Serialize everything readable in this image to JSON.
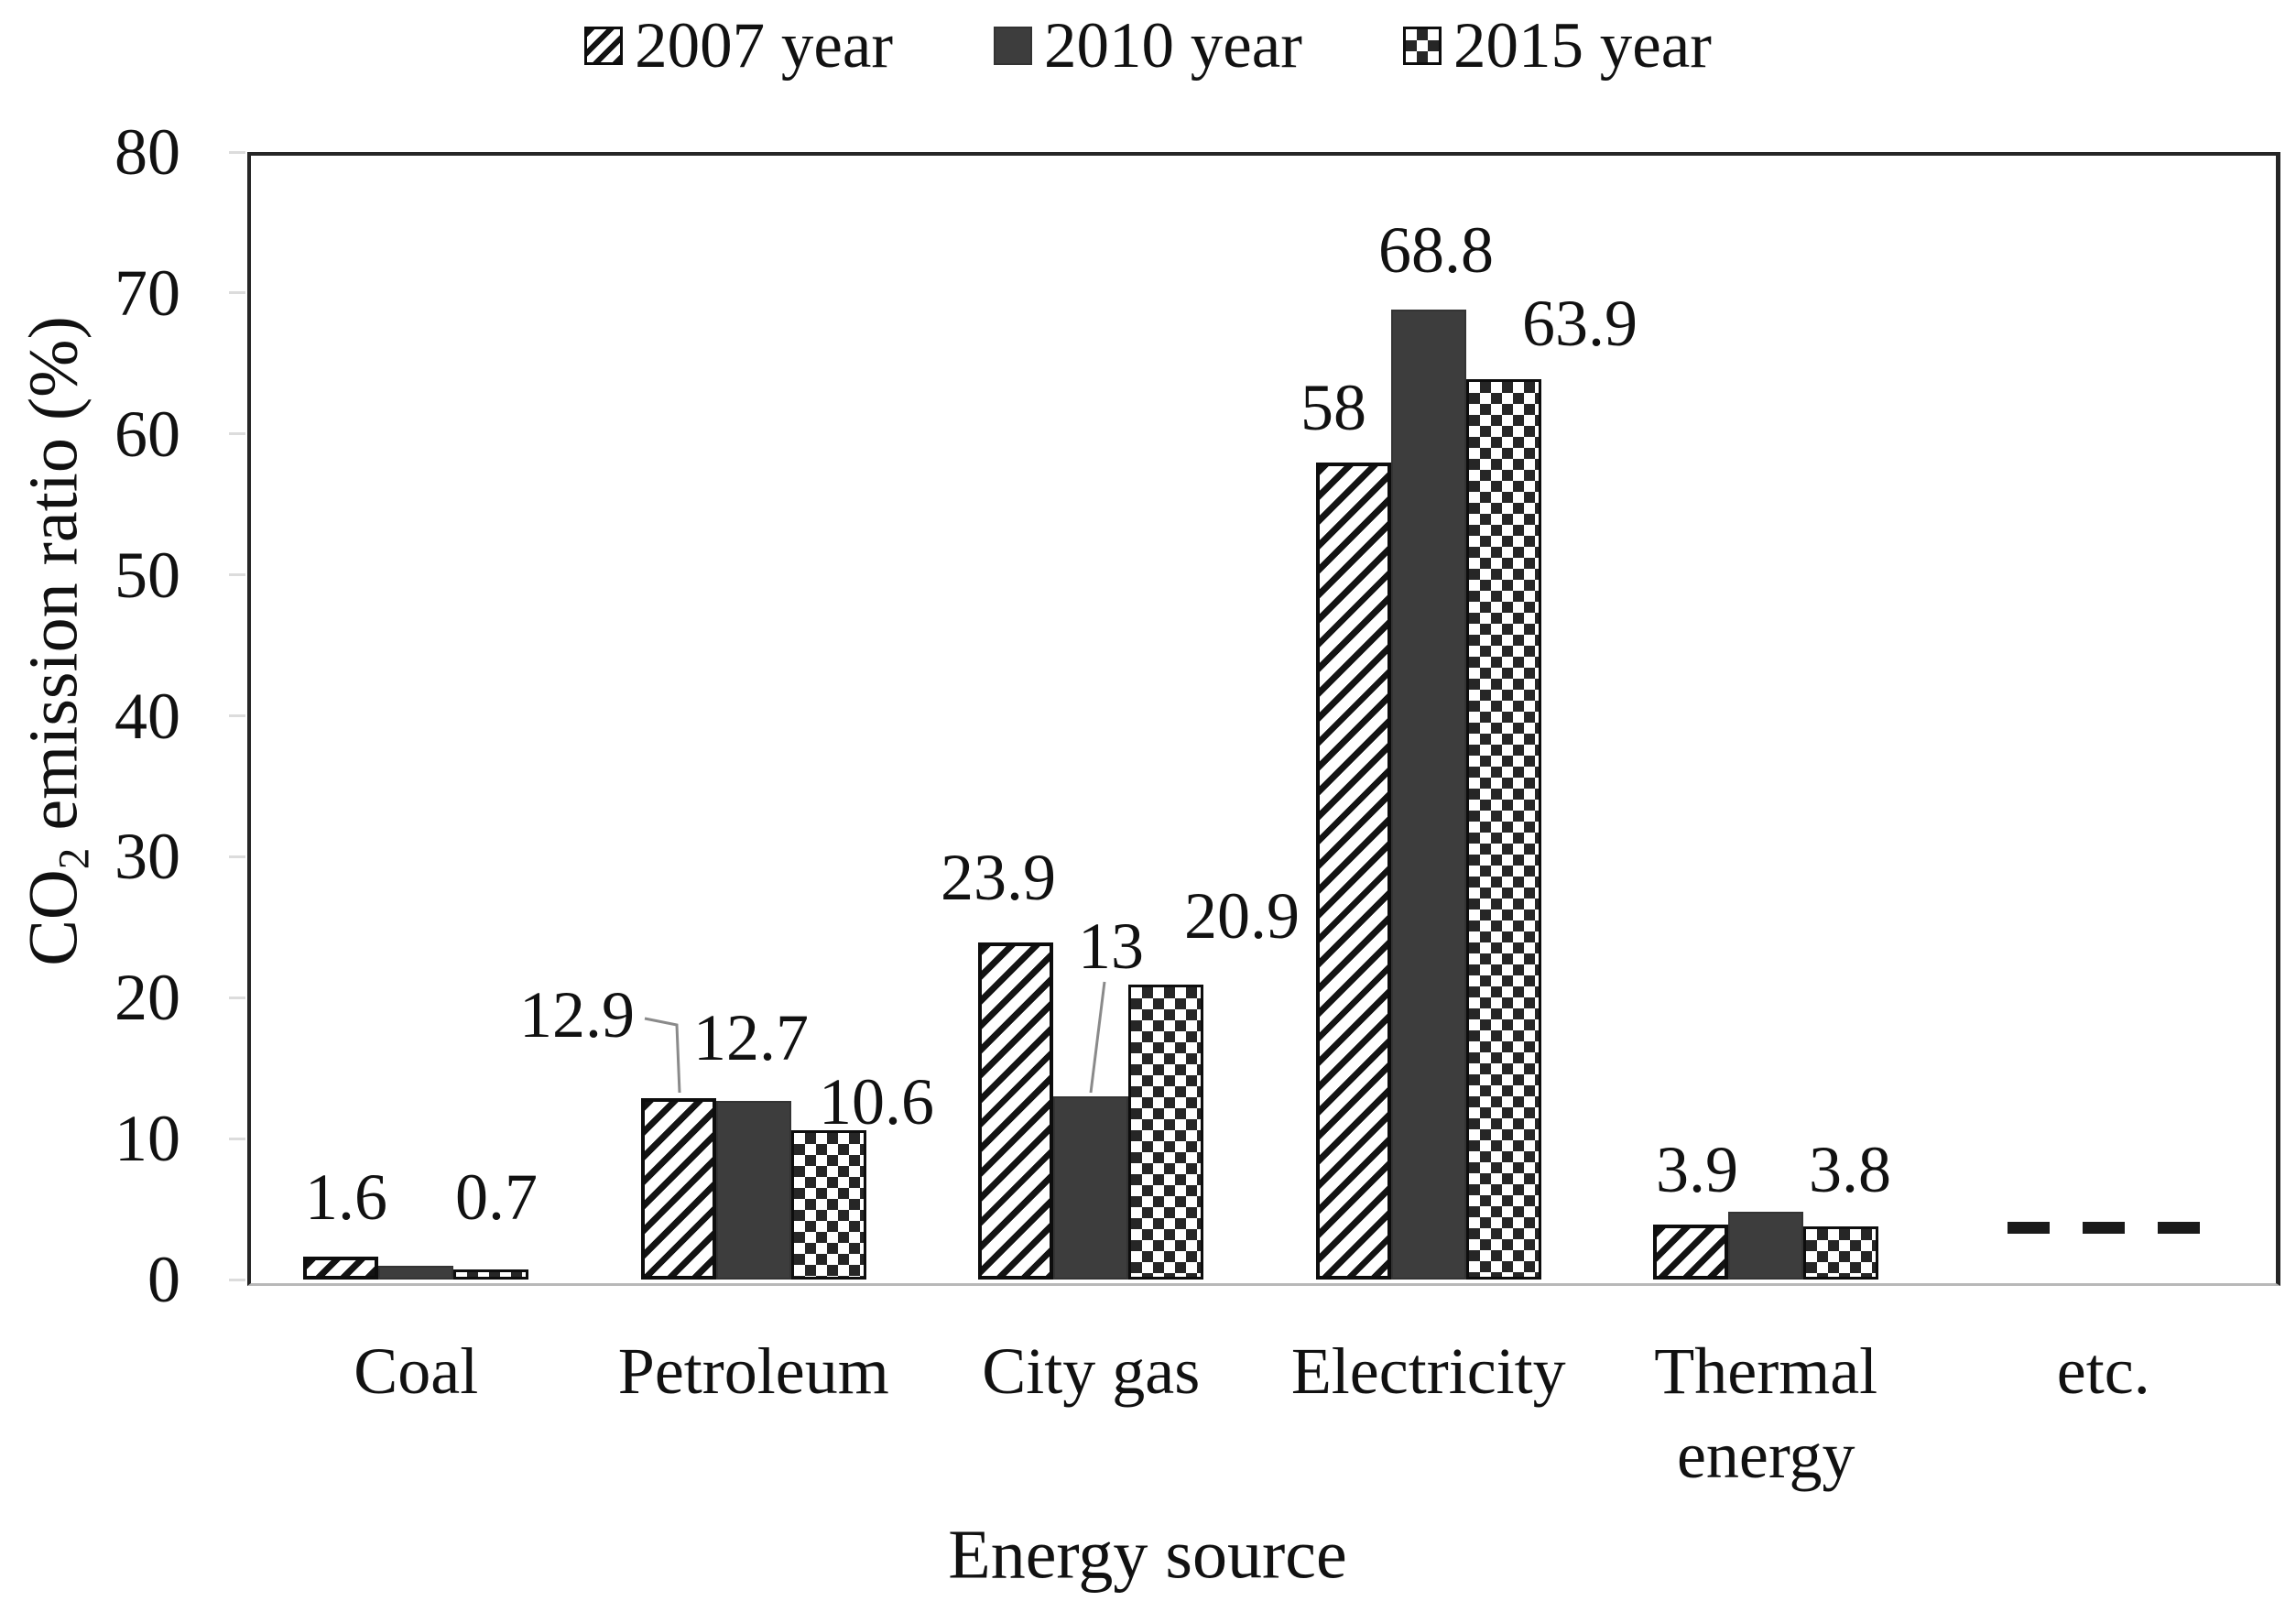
{
  "figure": {
    "background": "#ffffff"
  },
  "legend": {
    "position": "top",
    "items": [
      {
        "label": "2007 year",
        "pattern": "diagonal-stripes"
      },
      {
        "label": "2010 year",
        "pattern": "solid"
      },
      {
        "label": "2015 year",
        "pattern": "checkerboard"
      }
    ]
  },
  "axes": {
    "y_title": {
      "pre": "CO",
      "sub": "2",
      "post": " emission ratio (%)"
    },
    "x_title": "Energy source"
  },
  "chart_data": {
    "type": "bar",
    "title": "",
    "xlabel": "Energy source",
    "ylabel": "CO2 emission ratio (%)",
    "ylim": [
      0,
      80
    ],
    "y_ticks": [
      0,
      10,
      20,
      30,
      40,
      50,
      60,
      70,
      80
    ],
    "grid": false,
    "legend_position": "top",
    "categories": [
      "Coal",
      "Petroleum",
      "City gas",
      "Electricity",
      "Thermal energy",
      "etc."
    ],
    "x_tick_lines": [
      [
        "Coal"
      ],
      [
        "Petroleum"
      ],
      [
        "City gas"
      ],
      [
        "Electricity"
      ],
      [
        "Thermal",
        "energy"
      ],
      [
        "etc."
      ]
    ],
    "series": [
      {
        "name": "2007 year",
        "pattern": "diagonal-stripes",
        "values": [
          1.6,
          12.9,
          23.9,
          58,
          3.9,
          null
        ],
        "labels": [
          "1.6",
          "12.9",
          "23.9",
          "58",
          "3.9",
          null
        ]
      },
      {
        "name": "2010 year",
        "pattern": "solid",
        "values": [
          1.0,
          12.7,
          13,
          68.8,
          4.8,
          null
        ],
        "labels": [
          null,
          "12.7",
          "13",
          "68.8",
          null,
          null
        ]
      },
      {
        "name": "2015 year",
        "pattern": "checkerboard",
        "values": [
          0.7,
          10.6,
          20.9,
          63.9,
          3.8,
          null
        ],
        "labels": [
          "0.7",
          "10.6",
          "20.9",
          "63.9",
          "3.8",
          null
        ]
      }
    ],
    "no_data_category": "etc.",
    "no_data_marker": "-",
    "colors": {
      "solid_bar": "#3d3d3d",
      "bar_outline": "#0d0d0d",
      "axis_dark": "#262626",
      "axis_bottom_light": "#b8b8b8",
      "text": "#111111",
      "leader_line": "#8a8a8a"
    }
  }
}
